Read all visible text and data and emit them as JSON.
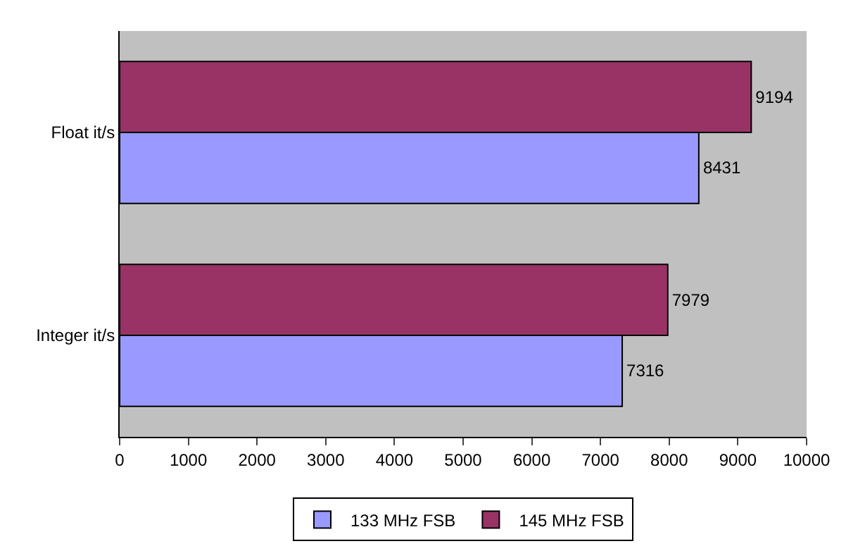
{
  "chart_data": {
    "type": "bar",
    "orientation": "horizontal",
    "categories": [
      "Float it/s",
      "Integer it/s"
    ],
    "series": [
      {
        "name": "133 MHz FSB",
        "color": "#9999ff",
        "values": [
          8431,
          7316
        ]
      },
      {
        "name": "145 MHz FSB",
        "color": "#993366",
        "values": [
          9194,
          7979
        ]
      }
    ],
    "xlim": [
      0,
      10000
    ],
    "xticks": [
      0,
      1000,
      2000,
      3000,
      4000,
      5000,
      6000,
      7000,
      8000,
      9000,
      10000
    ],
    "grid": false,
    "legend": "bottom",
    "data_labels": true
  }
}
